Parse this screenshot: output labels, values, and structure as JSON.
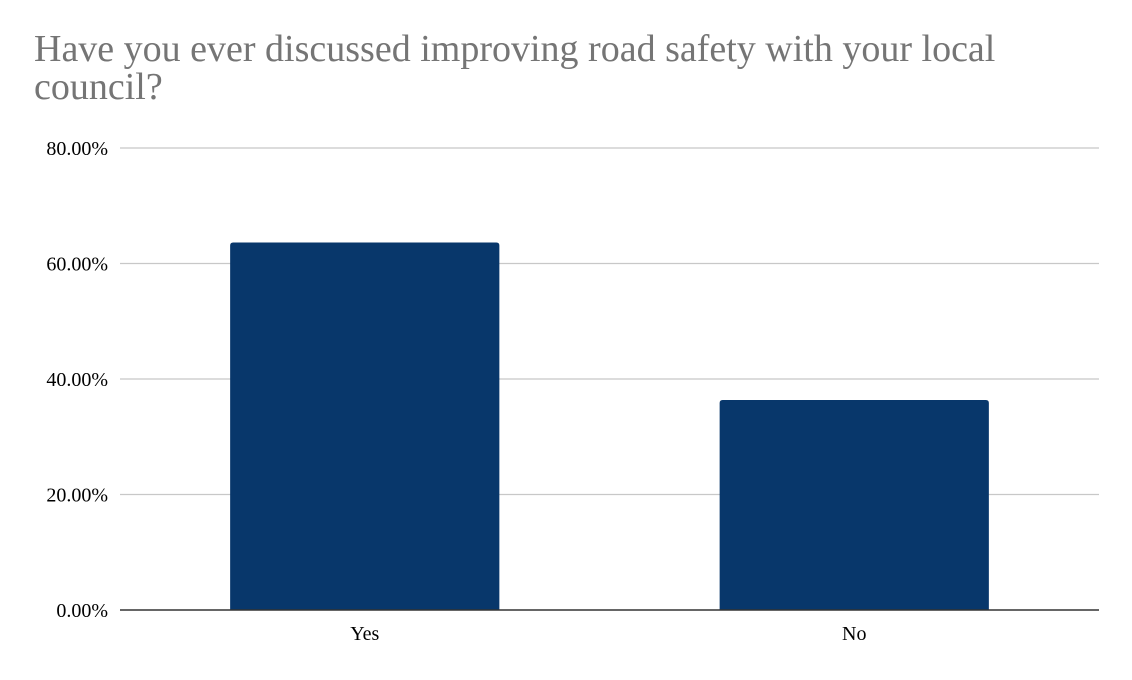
{
  "chart_data": {
    "type": "bar",
    "title": "Have you ever discussed improving road safety with your local council?",
    "categories": [
      "Yes",
      "No"
    ],
    "values": [
      0.6364,
      0.3636
    ],
    "ylim": [
      0,
      0.8
    ],
    "y_ticks": [
      "0.00%",
      "20.00%",
      "40.00%",
      "60.00%",
      "80.00%"
    ],
    "xlabel": "",
    "ylabel": "",
    "grid": true,
    "legend": "none",
    "bar_color": "#08376b",
    "grid_color": "#c8c8c8",
    "axis_color": "#333333"
  }
}
